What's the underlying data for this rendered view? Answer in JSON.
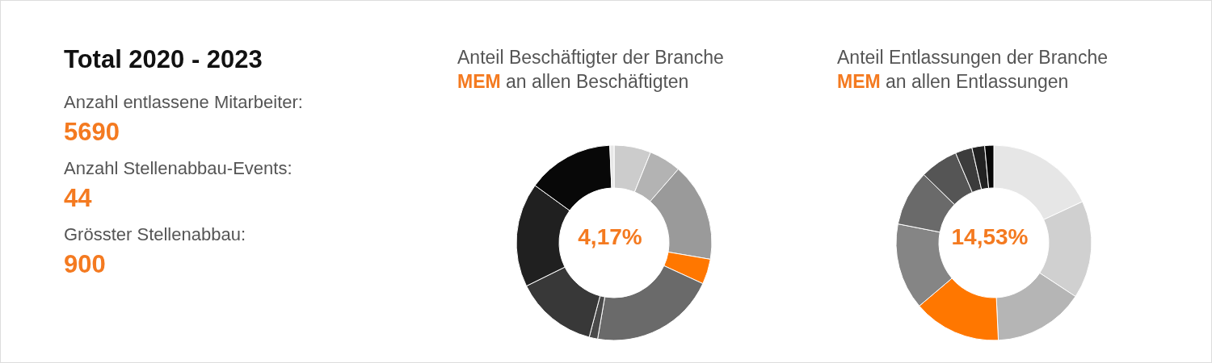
{
  "chart_data": [
    {
      "type": "other",
      "title": "Total 2020 - 2023",
      "annotations": [
        "Anzahl entlassene Mitarbeiter:",
        "5690",
        "Anzahl Stellenabbau-Events:",
        "44",
        "Grösster Stellenabbau:",
        "900"
      ]
    },
    {
      "type": "donut",
      "title": "Anteil Beschäftigter der Branche",
      "subtitle": "MEM an allen Beschäftigten",
      "categories": [
        null,
        null,
        null,
        null,
        null,
        null,
        null,
        null,
        null,
        null
      ],
      "values": [
        6.1,
        5.3,
        16.3,
        4.17,
        20.83,
        1.4,
        13.6,
        17.3,
        14.3,
        0.7
      ],
      "colors": [
        "#cccccc",
        "#b3b3b3",
        "#9a9a9a",
        "#ff7700",
        "#6a6a6a",
        "#4a4a4a",
        "#383838",
        "#202020",
        "#080808",
        "#e8e8e8"
      ],
      "annotations": [
        "4,17%"
      ]
    },
    {
      "type": "donut",
      "title": "Anteil Entlassungen der Branche",
      "subtitle": "MEM an allen Entlassungen",
      "categories": [
        null,
        null,
        null,
        null,
        null,
        null,
        null,
        null,
        null,
        null
      ],
      "values": [
        18.07,
        16.2,
        15.0,
        14.53,
        14.3,
        9.2,
        6.3,
        2.8,
        2.1,
        1.5
      ],
      "colors": [
        "#e6e6e6",
        "#d0d0d0",
        "#b5b5b5",
        "#ff7700",
        "#858585",
        "#6a6a6a",
        "#555555",
        "#3c3c3c",
        "#222222",
        "#080808"
      ],
      "annotations": [
        "14,53%"
      ]
    }
  ]
}
